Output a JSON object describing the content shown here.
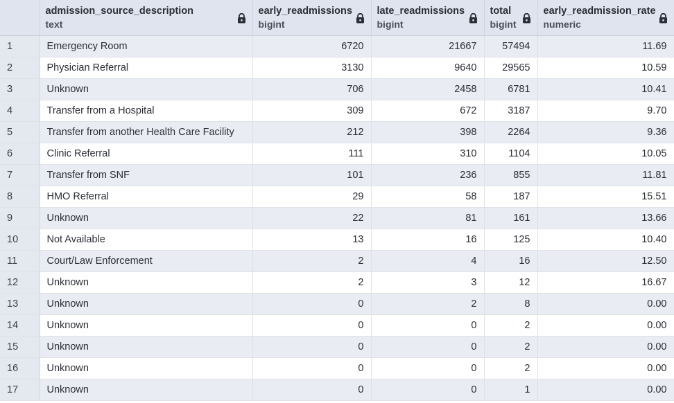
{
  "columns": [
    {
      "name": "admission_source_description",
      "type": "text"
    },
    {
      "name": "early_readmissions",
      "type": "bigint"
    },
    {
      "name": "late_readmissions",
      "type": "bigint"
    },
    {
      "name": "total",
      "type": "bigint"
    },
    {
      "name": "early_readmission_rate",
      "type": "numeric"
    }
  ],
  "rows": [
    {
      "n": "1",
      "source": "Emergency Room",
      "early": "6720",
      "late": "21667",
      "total": "57494",
      "rate": "11.69"
    },
    {
      "n": "2",
      "source": "Physician Referral",
      "early": "3130",
      "late": "9640",
      "total": "29565",
      "rate": "10.59"
    },
    {
      "n": "3",
      "source": "Unknown",
      "early": "706",
      "late": "2458",
      "total": "6781",
      "rate": "10.41"
    },
    {
      "n": "4",
      "source": "Transfer from a Hospital",
      "early": "309",
      "late": "672",
      "total": "3187",
      "rate": "9.70"
    },
    {
      "n": "5",
      "source": "Transfer from another Health Care Facility",
      "early": "212",
      "late": "398",
      "total": "2264",
      "rate": "9.36"
    },
    {
      "n": "6",
      "source": "Clinic Referral",
      "early": "111",
      "late": "310",
      "total": "1104",
      "rate": "10.05"
    },
    {
      "n": "7",
      "source": "Transfer from SNF",
      "early": "101",
      "late": "236",
      "total": "855",
      "rate": "11.81"
    },
    {
      "n": "8",
      "source": "HMO Referral",
      "early": "29",
      "late": "58",
      "total": "187",
      "rate": "15.51"
    },
    {
      "n": "9",
      "source": "Unknown",
      "early": "22",
      "late": "81",
      "total": "161",
      "rate": "13.66"
    },
    {
      "n": "10",
      "source": "Not Available",
      "early": "13",
      "late": "16",
      "total": "125",
      "rate": "10.40"
    },
    {
      "n": "11",
      "source": "Court/Law Enforcement",
      "early": "2",
      "late": "4",
      "total": "16",
      "rate": "12.50"
    },
    {
      "n": "12",
      "source": "Unknown",
      "early": "2",
      "late": "3",
      "total": "12",
      "rate": "16.67"
    },
    {
      "n": "13",
      "source": "Unknown",
      "early": "0",
      "late": "2",
      "total": "8",
      "rate": "0.00"
    },
    {
      "n": "14",
      "source": "Unknown",
      "early": "0",
      "late": "0",
      "total": "2",
      "rate": "0.00"
    },
    {
      "n": "15",
      "source": "Unknown",
      "early": "0",
      "late": "0",
      "total": "2",
      "rate": "0.00"
    },
    {
      "n": "16",
      "source": "Unknown",
      "early": "0",
      "late": "0",
      "total": "2",
      "rate": "0.00"
    },
    {
      "n": "17",
      "source": "Unknown",
      "early": "0",
      "late": "0",
      "total": "1",
      "rate": "0.00"
    }
  ],
  "icons": {
    "column_lock": "lock-icon"
  }
}
